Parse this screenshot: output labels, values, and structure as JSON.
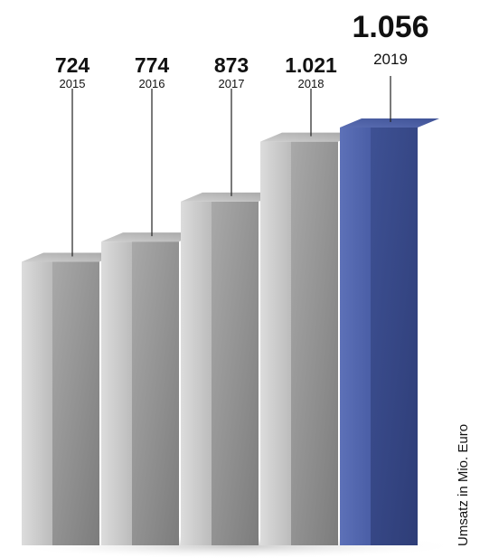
{
  "chart_data": {
    "type": "bar",
    "categories": [
      "2015",
      "2016",
      "2017",
      "2018",
      "2019"
    ],
    "values": [
      724,
      774,
      873,
      1021,
      1056
    ],
    "value_labels": [
      "724",
      "774",
      "873",
      "1.021",
      "1.056"
    ],
    "ylabel": "Umsatz in Mio. Euro",
    "highlight_index": 4,
    "colors": {
      "bar": "#a3a3a3",
      "bar_front_light": "#d6d6d6",
      "bar_top": "#bdbdbd",
      "highlight": "#3d5192",
      "highlight_light": "#5b6fb6",
      "highlight_top": "#4b5fa8"
    }
  }
}
